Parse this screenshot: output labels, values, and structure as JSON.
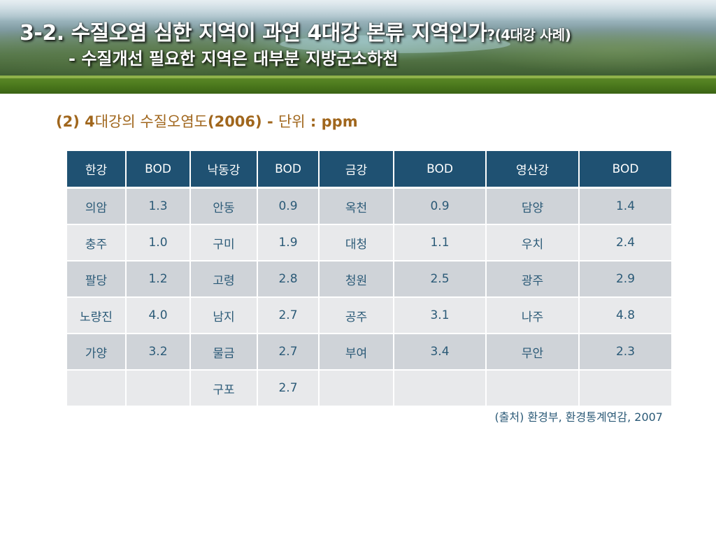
{
  "header": {
    "title_main": "3-2. 수질오염 심한 지역이 과연 4대강 본류 지역인가",
    "title_suffix": "?(4대강 사례)",
    "title_line2": "- 수질개선 필요한 지역은 대부분 지방군소하천"
  },
  "subtitle": {
    "prefix": "(2) 4",
    "part1": "대강의 수질오염도",
    "year": "(2006) - ",
    "part2": "단위",
    "unit": " : ppm"
  },
  "table": {
    "columns": [
      "한강",
      "BOD",
      "낙동강",
      "BOD",
      "금강",
      "BOD",
      "영산강",
      "BOD"
    ],
    "rows": [
      [
        "의암",
        "1.3",
        "안동",
        "0.9",
        "옥천",
        "0.9",
        "담양",
        "1.4"
      ],
      [
        "충주",
        "1.0",
        "구미",
        "1.9",
        "대청",
        "1.1",
        "우치",
        "2.4"
      ],
      [
        "팔당",
        "1.2",
        "고령",
        "2.8",
        "청원",
        "2.5",
        "광주",
        "2.9"
      ],
      [
        "노량진",
        "4.0",
        "남지",
        "2.7",
        "공주",
        "3.1",
        "나주",
        "4.8"
      ],
      [
        "가양",
        "3.2",
        "물금",
        "2.7",
        "부여",
        "3.4",
        "무안",
        "2.3"
      ],
      [
        "",
        "",
        "구포",
        "2.7",
        "",
        "",
        "",
        ""
      ]
    ]
  },
  "source": "(출처) 환경부, 환경통계연감, 2007",
  "colors": {
    "header_cell": "#1f5172",
    "row_dark": "#cfd3d8",
    "row_light": "#e8e9eb",
    "cell_text": "#2b5a77",
    "subtitle_text": "#a0661c",
    "banner_green": "#4f7d1f"
  }
}
